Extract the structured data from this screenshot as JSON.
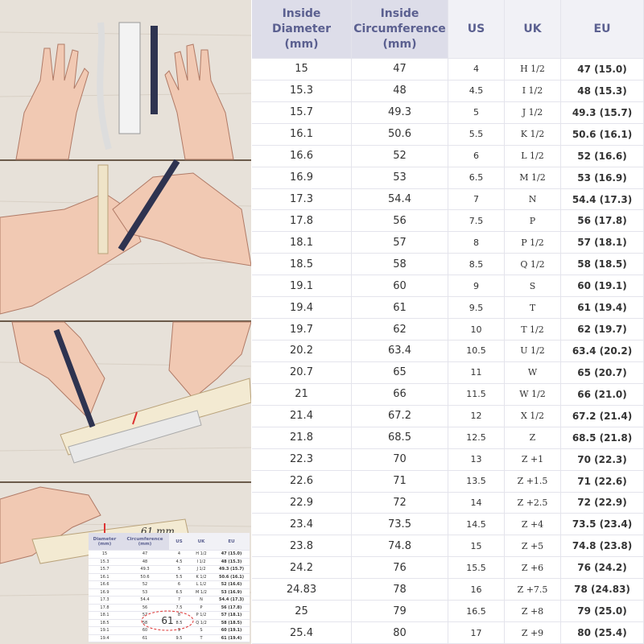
{
  "table": {
    "headers": [
      "Inside Diameter (mm)",
      "Inside Circumference (mm)",
      "US",
      "UK",
      "EU"
    ],
    "rows": [
      [
        "15",
        "47",
        "4",
        "H 1/2",
        "47 (15.0)"
      ],
      [
        "15.3",
        "48",
        "4.5",
        "I 1/2",
        "48 (15.3)"
      ],
      [
        "15.7",
        "49.3",
        "5",
        "J 1/2",
        "49.3 (15.7)"
      ],
      [
        "16.1",
        "50.6",
        "5.5",
        "K 1/2",
        "50.6 (16.1)"
      ],
      [
        "16.6",
        "52",
        "6",
        "L 1/2",
        "52 (16.6)"
      ],
      [
        "16.9",
        "53",
        "6.5",
        "M 1/2",
        "53 (16.9)"
      ],
      [
        "17.3",
        "54.4",
        "7",
        "N",
        "54.4 (17.3)"
      ],
      [
        "17.8",
        "56",
        "7.5",
        "P",
        "56 (17.8)"
      ],
      [
        "18.1",
        "57",
        "8",
        "P 1/2",
        "57 (18.1)"
      ],
      [
        "18.5",
        "58",
        "8.5",
        "Q 1/2",
        "58 (18.5)"
      ],
      [
        "19.1",
        "60",
        "9",
        "S",
        "60 (19.1)"
      ],
      [
        "19.4",
        "61",
        "9.5",
        "T",
        "61 (19.4)"
      ],
      [
        "19.7",
        "62",
        "10",
        "T 1/2",
        "62 (19.7)"
      ],
      [
        "20.2",
        "63.4",
        "10.5",
        "U 1/2",
        "63.4 (20.2)"
      ],
      [
        "20.7",
        "65",
        "11",
        "W",
        "65 (20.7)"
      ],
      [
        "21",
        "66",
        "11.5",
        "W 1/2",
        "66 (21.0)"
      ],
      [
        "21.4",
        "67.2",
        "12",
        "X 1/2",
        "67.2 (21.4)"
      ],
      [
        "21.8",
        "68.5",
        "12.5",
        "Z",
        "68.5 (21.8)"
      ],
      [
        "22.3",
        "70",
        "13",
        "Z +1",
        "70 (22.3)"
      ],
      [
        "22.6",
        "71",
        "13.5",
        "Z +1.5",
        "71 (22.6)"
      ],
      [
        "22.9",
        "72",
        "14",
        "Z +2.5",
        "72 (22.9)"
      ],
      [
        "23.4",
        "73.5",
        "14.5",
        "Z +4",
        "73.5 (23.4)"
      ],
      [
        "23.8",
        "74.8",
        "15",
        "Z +5",
        "74.8 (23.8)"
      ],
      [
        "24.2",
        "76",
        "15.5",
        "Z +6",
        "76 (24.2)"
      ],
      [
        "24.83",
        "78",
        "16",
        "Z +7.5",
        "78 (24.83)"
      ],
      [
        "25",
        "79",
        "16.5",
        "Z +8",
        "79 (25.0)"
      ],
      [
        "25.4",
        "80",
        "17",
        "Z +9",
        "80 (25.4)"
      ]
    ]
  },
  "illustration": {
    "tape_label": "61 mm",
    "circled_value": "61",
    "mini_table_headers": [
      "Diameter (mm)",
      "Circumference (mm)",
      "US",
      "UK",
      "EU"
    ]
  }
}
